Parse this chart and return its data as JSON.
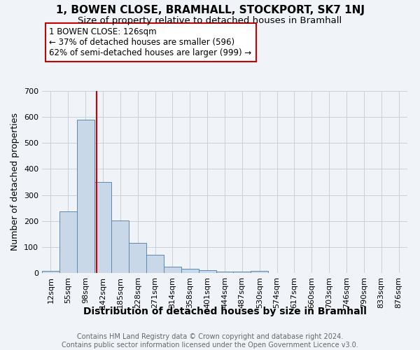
{
  "title": "1, BOWEN CLOSE, BRAMHALL, STOCKPORT, SK7 1NJ",
  "subtitle": "Size of property relative to detached houses in Bramhall",
  "xlabel": "Distribution of detached houses by size in Bramhall",
  "ylabel": "Number of detached properties",
  "footnote": "Contains HM Land Registry data © Crown copyright and database right 2024.\nContains public sector information licensed under the Open Government Licence v3.0.",
  "bar_labels": [
    "12sqm",
    "55sqm",
    "98sqm",
    "142sqm",
    "185sqm",
    "228sqm",
    "271sqm",
    "314sqm",
    "358sqm",
    "401sqm",
    "444sqm",
    "487sqm",
    "530sqm",
    "574sqm",
    "617sqm",
    "660sqm",
    "703sqm",
    "746sqm",
    "790sqm",
    "833sqm",
    "876sqm"
  ],
  "bar_values": [
    8,
    237,
    590,
    350,
    202,
    115,
    70,
    25,
    15,
    10,
    6,
    5,
    8,
    0,
    0,
    0,
    0,
    0,
    0,
    0,
    0
  ],
  "bar_color": "#c8d8e8",
  "bar_edgecolor": "#5a8ab0",
  "grid_color": "#c8d0d8",
  "bg_color": "#f0f4f8",
  "annotation_text": "1 BOWEN CLOSE: 126sqm\n← 37% of detached houses are smaller (596)\n62% of semi-detached houses are larger (999) →",
  "annotation_box_color": "#ffffff",
  "annotation_box_edgecolor": "#cc0000",
  "vline_x_bar_index": 2.636,
  "vline_color": "#cc0000",
  "ylim": [
    0,
    700
  ],
  "title_fontsize": 11,
  "subtitle_fontsize": 9.5,
  "xlabel_fontsize": 10,
  "ylabel_fontsize": 9,
  "tick_fontsize": 8,
  "annotation_fontsize": 8.5,
  "footnote_fontsize": 7,
  "footnote_color": "#666666"
}
